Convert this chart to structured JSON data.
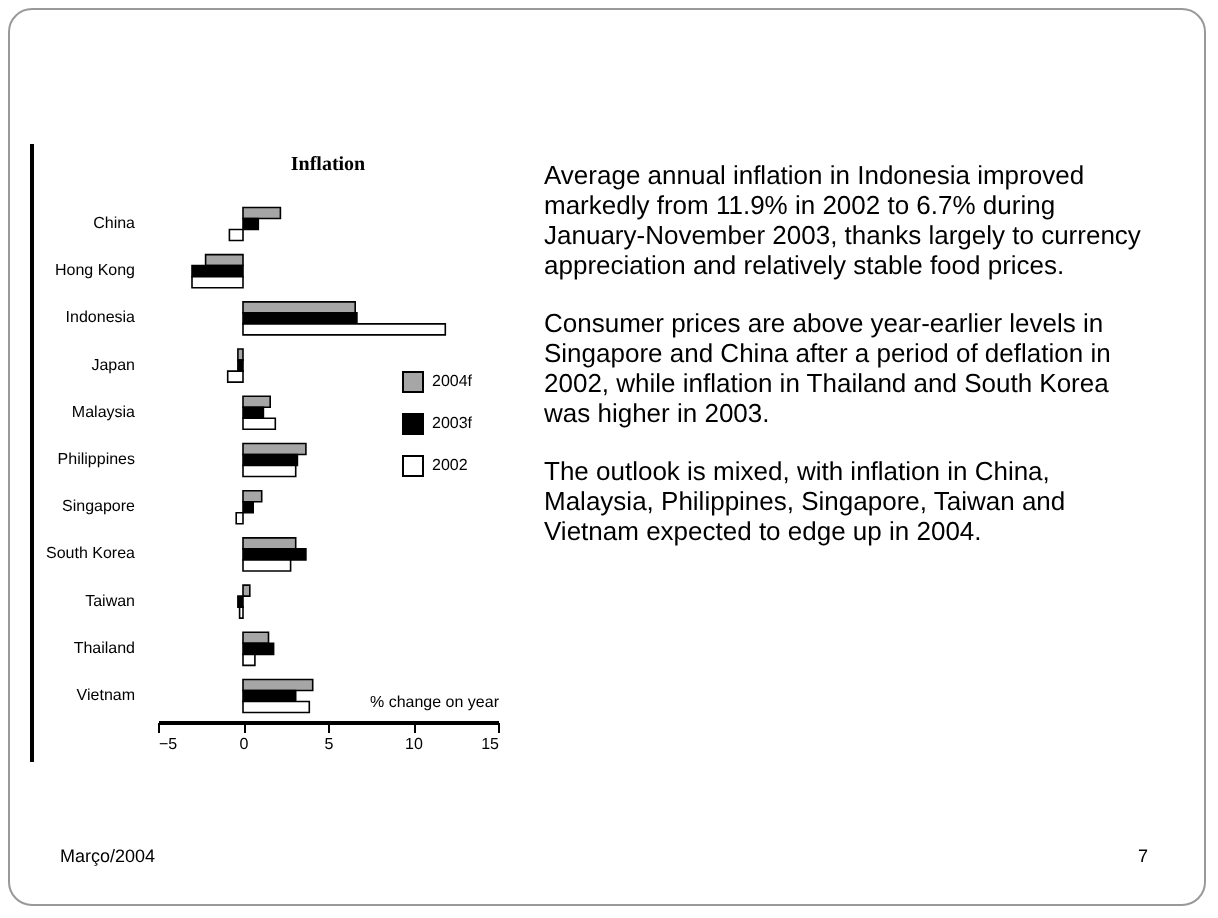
{
  "chart_data": {
    "type": "bar",
    "orientation": "horizontal",
    "title": "Inflation",
    "xlabel": "% change on year",
    "categories": [
      "China",
      "Hong Kong",
      "Indonesia",
      "Japan",
      "Malaysia",
      "Philippines",
      "Singapore",
      "South Korea",
      "Taiwan",
      "Thailand",
      "Vietnam"
    ],
    "series": [
      {
        "name": "2004f",
        "color": "#a6a6a6",
        "values": [
          2.2,
          -2.2,
          6.6,
          -0.3,
          1.6,
          3.7,
          1.1,
          3.1,
          0.4,
          1.5,
          4.1
        ]
      },
      {
        "name": "2003f",
        "color": "#000000",
        "values": [
          0.9,
          -3.0,
          6.7,
          -0.3,
          1.2,
          3.2,
          0.6,
          3.7,
          -0.3,
          1.8,
          3.1
        ]
      },
      {
        "name": "2002",
        "color": "#ffffff",
        "values": [
          -0.8,
          -3.0,
          11.9,
          -0.9,
          1.9,
          3.1,
          -0.4,
          2.8,
          -0.2,
          0.7,
          3.9
        ]
      }
    ],
    "xlim": [
      -5,
      15
    ],
    "xticks": [
      -5,
      0,
      5,
      10,
      15
    ],
    "grid": false,
    "legend": "right",
    "annotations": [
      "Average annual inflation in Indonesia improved markedly from 11.9% in 2002 to 6.7% during January-November 2003, thanks largely to currency appreciation and relatively stable food prices.",
      "Consumer prices are above year-earlier levels in Singapore and China after a period of deflation in 2002, while inflation in Thailand and South Korea was higher in 2003.",
      "The outlook is mixed, with inflation in China, Malaysia, Philippines, Singapore, Taiwan and Vietnam expected to edge up in 2004.",
      "Março/2004",
      "7"
    ]
  }
}
